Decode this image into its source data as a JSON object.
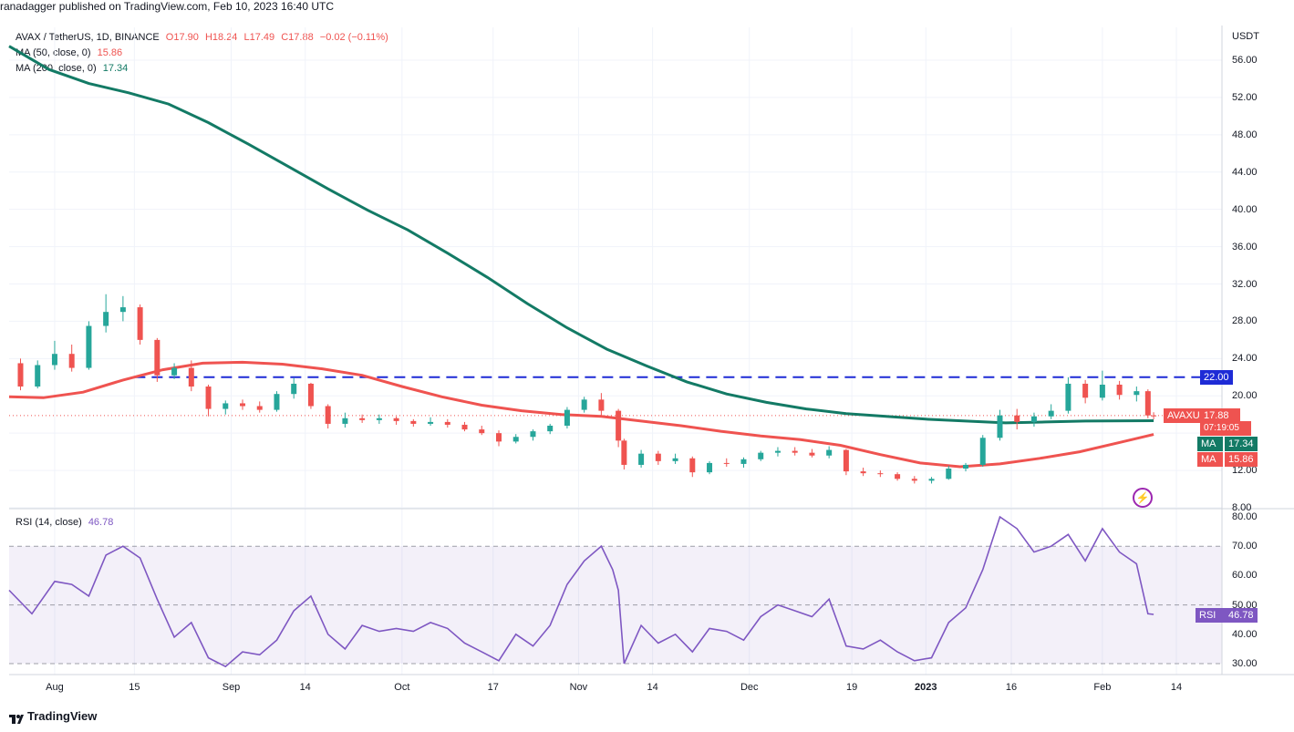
{
  "attribution": "ranadagger published on TradingView.com, Feb 10, 2023 16:40 UTC",
  "symbol_line": {
    "symbol": "AVAX / TetherUS, 1D, BINANCE",
    "open": "O17.90",
    "high": "H18.24",
    "low": "L17.49",
    "close": "C17.88",
    "change": "−0.02 (−0.11%)"
  },
  "ma50_legend": {
    "label": "MA (50, close, 0)",
    "value": "15.86"
  },
  "ma200_legend": {
    "label": "MA (200, close, 0)",
    "value": "17.34"
  },
  "rsi_legend": {
    "label": "RSI (14, close)",
    "value": "46.78"
  },
  "price_axis": {
    "currency": "USDT",
    "ticks": [
      "56.00",
      "52.00",
      "48.00",
      "44.00",
      "40.00",
      "36.00",
      "32.00",
      "28.00",
      "24.00",
      "20.00",
      "12.00",
      "8.00"
    ]
  },
  "rsi_axis": {
    "ticks": [
      "80.00",
      "70.00",
      "60.00",
      "50.00",
      "40.00",
      "30.00"
    ]
  },
  "x_axis": {
    "ticks": [
      "Aug",
      "15",
      "Sep",
      "14",
      "Oct",
      "17",
      "Nov",
      "14",
      "Dec",
      "19",
      "2023",
      "16",
      "Feb",
      "14"
    ]
  },
  "tags": {
    "resistance": "22.00",
    "ticker": "AVAXUSDT",
    "last_price": "17.88",
    "countdown": "07:19:05",
    "ma200_label": "MA",
    "ma200_value": "17.34",
    "ma50_label": "MA",
    "ma50_value": "15.86",
    "rsi_label": "RSI",
    "rsi_value": "46.78"
  },
  "colors": {
    "up": "#26a69a",
    "down": "#ef5350",
    "ma50": "#ef5350",
    "ma200": "#137a65",
    "rsi": "#7e57c2",
    "resistance": "#1e2bd6"
  },
  "brand": "TradingView",
  "chart_data": {
    "type": "candlestick",
    "timeframe": "1D",
    "resistance_level": 22.0,
    "price_ylim": [
      8,
      58
    ],
    "rsi_ylim": [
      28,
      82
    ],
    "rsi_bands": [
      30,
      50,
      70
    ],
    "candles": [
      {
        "date": "2022-07-26",
        "o": 23.5,
        "h": 24.0,
        "l": 20.6,
        "c": 21.0
      },
      {
        "date": "2022-07-29",
        "o": 21.0,
        "h": 23.8,
        "l": 20.8,
        "c": 23.3
      },
      {
        "date": "2022-08-01",
        "o": 23.3,
        "h": 25.9,
        "l": 22.8,
        "c": 24.5
      },
      {
        "date": "2022-08-04",
        "o": 24.5,
        "h": 25.5,
        "l": 22.6,
        "c": 23.0
      },
      {
        "date": "2022-08-07",
        "o": 23.0,
        "h": 28.0,
        "l": 22.8,
        "c": 27.5
      },
      {
        "date": "2022-08-10",
        "o": 27.5,
        "h": 30.9,
        "l": 26.8,
        "c": 29.0
      },
      {
        "date": "2022-08-13",
        "o": 29.0,
        "h": 30.7,
        "l": 28.0,
        "c": 29.5
      },
      {
        "date": "2022-08-16",
        "o": 29.5,
        "h": 29.8,
        "l": 25.5,
        "c": 26.0
      },
      {
        "date": "2022-08-19",
        "o": 26.0,
        "h": 26.2,
        "l": 21.5,
        "c": 22.2
      },
      {
        "date": "2022-08-22",
        "o": 22.2,
        "h": 23.5,
        "l": 21.8,
        "c": 23.0
      },
      {
        "date": "2022-08-25",
        "o": 23.0,
        "h": 23.8,
        "l": 20.5,
        "c": 21.0
      },
      {
        "date": "2022-08-28",
        "o": 21.0,
        "h": 21.2,
        "l": 17.8,
        "c": 18.6
      },
      {
        "date": "2022-08-31",
        "o": 18.6,
        "h": 19.5,
        "l": 18.0,
        "c": 19.2
      },
      {
        "date": "2022-09-03",
        "o": 19.2,
        "h": 19.6,
        "l": 18.5,
        "c": 18.9
      },
      {
        "date": "2022-09-06",
        "o": 18.9,
        "h": 19.4,
        "l": 18.2,
        "c": 18.5
      },
      {
        "date": "2022-09-09",
        "o": 18.5,
        "h": 20.5,
        "l": 18.3,
        "c": 20.2
      },
      {
        "date": "2022-09-12",
        "o": 20.2,
        "h": 21.9,
        "l": 19.7,
        "c": 21.3
      },
      {
        "date": "2022-09-15",
        "o": 21.3,
        "h": 21.4,
        "l": 18.6,
        "c": 18.9
      },
      {
        "date": "2022-09-18",
        "o": 18.9,
        "h": 19.1,
        "l": 16.5,
        "c": 17.0
      },
      {
        "date": "2022-09-21",
        "o": 17.0,
        "h": 18.2,
        "l": 16.6,
        "c": 17.6
      },
      {
        "date": "2022-09-24",
        "o": 17.6,
        "h": 18.0,
        "l": 17.1,
        "c": 17.4
      },
      {
        "date": "2022-09-27",
        "o": 17.4,
        "h": 18.0,
        "l": 17.0,
        "c": 17.6
      },
      {
        "date": "2022-09-30",
        "o": 17.6,
        "h": 17.8,
        "l": 16.9,
        "c": 17.3
      },
      {
        "date": "2022-10-03",
        "o": 17.3,
        "h": 17.5,
        "l": 16.7,
        "c": 17.0
      },
      {
        "date": "2022-10-06",
        "o": 17.0,
        "h": 17.7,
        "l": 16.8,
        "c": 17.2
      },
      {
        "date": "2022-10-09",
        "o": 17.2,
        "h": 17.5,
        "l": 16.6,
        "c": 16.9
      },
      {
        "date": "2022-10-12",
        "o": 16.9,
        "h": 17.2,
        "l": 16.2,
        "c": 16.4
      },
      {
        "date": "2022-10-15",
        "o": 16.4,
        "h": 16.8,
        "l": 15.8,
        "c": 16.0
      },
      {
        "date": "2022-10-18",
        "o": 16.0,
        "h": 16.3,
        "l": 14.6,
        "c": 15.1
      },
      {
        "date": "2022-10-21",
        "o": 15.1,
        "h": 15.9,
        "l": 14.9,
        "c": 15.6
      },
      {
        "date": "2022-10-24",
        "o": 15.6,
        "h": 16.4,
        "l": 15.2,
        "c": 16.2
      },
      {
        "date": "2022-10-27",
        "o": 16.2,
        "h": 17.0,
        "l": 15.9,
        "c": 16.8
      },
      {
        "date": "2022-10-30",
        "o": 16.8,
        "h": 18.8,
        "l": 16.5,
        "c": 18.5
      },
      {
        "date": "2022-11-02",
        "o": 18.5,
        "h": 19.9,
        "l": 18.2,
        "c": 19.6
      },
      {
        "date": "2022-11-05",
        "o": 19.6,
        "h": 20.3,
        "l": 17.9,
        "c": 18.4
      },
      {
        "date": "2022-11-08",
        "o": 18.4,
        "h": 18.6,
        "l": 14.5,
        "c": 15.2
      },
      {
        "date": "2022-11-09",
        "o": 15.2,
        "h": 15.4,
        "l": 12.1,
        "c": 12.6
      },
      {
        "date": "2022-11-12",
        "o": 12.6,
        "h": 14.2,
        "l": 12.3,
        "c": 13.8
      },
      {
        "date": "2022-11-15",
        "o": 13.8,
        "h": 14.1,
        "l": 12.6,
        "c": 13.0
      },
      {
        "date": "2022-11-18",
        "o": 13.0,
        "h": 13.8,
        "l": 12.7,
        "c": 13.3
      },
      {
        "date": "2022-11-21",
        "o": 13.3,
        "h": 13.5,
        "l": 11.3,
        "c": 11.8
      },
      {
        "date": "2022-11-24",
        "o": 11.8,
        "h": 13.0,
        "l": 11.6,
        "c": 12.8
      },
      {
        "date": "2022-11-27",
        "o": 12.8,
        "h": 13.3,
        "l": 12.4,
        "c": 12.7
      },
      {
        "date": "2022-11-30",
        "o": 12.7,
        "h": 13.4,
        "l": 12.3,
        "c": 13.2
      },
      {
        "date": "2022-12-03",
        "o": 13.2,
        "h": 14.1,
        "l": 13.0,
        "c": 13.9
      },
      {
        "date": "2022-12-06",
        "o": 13.9,
        "h": 14.5,
        "l": 13.5,
        "c": 14.1
      },
      {
        "date": "2022-12-09",
        "o": 14.1,
        "h": 14.5,
        "l": 13.6,
        "c": 13.9
      },
      {
        "date": "2022-12-12",
        "o": 13.9,
        "h": 14.3,
        "l": 13.4,
        "c": 13.6
      },
      {
        "date": "2022-12-15",
        "o": 13.6,
        "h": 14.6,
        "l": 13.3,
        "c": 14.2
      },
      {
        "date": "2022-12-18",
        "o": 14.2,
        "h": 14.3,
        "l": 11.5,
        "c": 11.9
      },
      {
        "date": "2022-12-21",
        "o": 11.9,
        "h": 12.3,
        "l": 11.4,
        "c": 11.7
      },
      {
        "date": "2022-12-24",
        "o": 11.7,
        "h": 12.0,
        "l": 11.3,
        "c": 11.6
      },
      {
        "date": "2022-12-27",
        "o": 11.6,
        "h": 11.8,
        "l": 10.9,
        "c": 11.1
      },
      {
        "date": "2022-12-30",
        "o": 11.1,
        "h": 11.4,
        "l": 10.6,
        "c": 10.9
      },
      {
        "date": "2023-01-02",
        "o": 10.9,
        "h": 11.3,
        "l": 10.6,
        "c": 11.1
      },
      {
        "date": "2023-01-05",
        "o": 11.1,
        "h": 12.5,
        "l": 11.0,
        "c": 12.2
      },
      {
        "date": "2023-01-08",
        "o": 12.2,
        "h": 12.8,
        "l": 11.9,
        "c": 12.6
      },
      {
        "date": "2023-01-11",
        "o": 12.6,
        "h": 15.8,
        "l": 12.4,
        "c": 15.5
      },
      {
        "date": "2023-01-14",
        "o": 15.5,
        "h": 18.5,
        "l": 15.2,
        "c": 17.9
      },
      {
        "date": "2023-01-17",
        "o": 17.9,
        "h": 18.6,
        "l": 16.4,
        "c": 17.2
      },
      {
        "date": "2023-01-20",
        "o": 17.2,
        "h": 18.2,
        "l": 16.7,
        "c": 17.8
      },
      {
        "date": "2023-01-23",
        "o": 17.8,
        "h": 19.1,
        "l": 17.5,
        "c": 18.4
      },
      {
        "date": "2023-01-26",
        "o": 18.4,
        "h": 22.0,
        "l": 18.1,
        "c": 21.3
      },
      {
        "date": "2023-01-29",
        "o": 21.3,
        "h": 21.7,
        "l": 19.2,
        "c": 19.8
      },
      {
        "date": "2023-02-01",
        "o": 19.8,
        "h": 22.7,
        "l": 19.5,
        "c": 21.2
      },
      {
        "date": "2023-02-04",
        "o": 21.2,
        "h": 21.6,
        "l": 19.6,
        "c": 20.1
      },
      {
        "date": "2023-02-07",
        "o": 20.1,
        "h": 21.0,
        "l": 19.4,
        "c": 20.5
      },
      {
        "date": "2023-02-09",
        "o": 20.5,
        "h": 20.7,
        "l": 17.6,
        "c": 17.9
      },
      {
        "date": "2023-02-10",
        "o": 17.9,
        "h": 18.24,
        "l": 17.49,
        "c": 17.88
      }
    ],
    "ma50": [
      [
        "2022-07-24",
        19.9
      ],
      [
        "2022-07-30",
        19.8
      ],
      [
        "2022-08-06",
        20.4
      ],
      [
        "2022-08-13",
        21.7
      ],
      [
        "2022-08-20",
        22.8
      ],
      [
        "2022-08-27",
        23.5
      ],
      [
        "2022-09-03",
        23.6
      ],
      [
        "2022-09-10",
        23.4
      ],
      [
        "2022-09-17",
        22.9
      ],
      [
        "2022-09-24",
        22.2
      ],
      [
        "2022-10-01",
        21.0
      ],
      [
        "2022-10-08",
        19.9
      ],
      [
        "2022-10-15",
        19.0
      ],
      [
        "2022-10-22",
        18.4
      ],
      [
        "2022-10-29",
        18.0
      ],
      [
        "2022-11-05",
        17.8
      ],
      [
        "2022-11-12",
        17.3
      ],
      [
        "2022-11-19",
        16.8
      ],
      [
        "2022-11-26",
        16.2
      ],
      [
        "2022-12-03",
        15.7
      ],
      [
        "2022-12-10",
        15.3
      ],
      [
        "2022-12-17",
        14.7
      ],
      [
        "2022-12-24",
        13.7
      ],
      [
        "2022-12-31",
        12.8
      ],
      [
        "2023-01-07",
        12.4
      ],
      [
        "2023-01-14",
        12.7
      ],
      [
        "2023-01-21",
        13.3
      ],
      [
        "2023-01-28",
        14.0
      ],
      [
        "2023-02-04",
        15.0
      ],
      [
        "2023-02-10",
        15.86
      ]
    ],
    "ma200": [
      [
        "2022-07-24",
        57.5
      ],
      [
        "2022-07-31",
        55.0
      ],
      [
        "2022-08-07",
        53.5
      ],
      [
        "2022-08-14",
        52.5
      ],
      [
        "2022-08-21",
        51.3
      ],
      [
        "2022-08-28",
        49.3
      ],
      [
        "2022-09-04",
        47.0
      ],
      [
        "2022-09-11",
        44.6
      ],
      [
        "2022-09-18",
        42.2
      ],
      [
        "2022-09-25",
        39.9
      ],
      [
        "2022-10-02",
        37.8
      ],
      [
        "2022-10-09",
        35.3
      ],
      [
        "2022-10-16",
        32.7
      ],
      [
        "2022-10-23",
        29.9
      ],
      [
        "2022-10-30",
        27.3
      ],
      [
        "2022-11-06",
        25.0
      ],
      [
        "2022-11-13",
        23.2
      ],
      [
        "2022-11-20",
        21.5
      ],
      [
        "2022-11-27",
        20.2
      ],
      [
        "2022-12-04",
        19.3
      ],
      [
        "2022-12-11",
        18.6
      ],
      [
        "2022-12-18",
        18.1
      ],
      [
        "2022-12-25",
        17.8
      ],
      [
        "2023-01-01",
        17.5
      ],
      [
        "2023-01-08",
        17.3
      ],
      [
        "2023-01-15",
        17.1
      ],
      [
        "2023-01-22",
        17.2
      ],
      [
        "2023-01-29",
        17.3
      ],
      [
        "2023-02-10",
        17.34
      ]
    ],
    "rsi": [
      [
        "2022-07-24",
        55
      ],
      [
        "2022-07-28",
        47
      ],
      [
        "2022-08-01",
        58
      ],
      [
        "2022-08-04",
        57
      ],
      [
        "2022-08-07",
        53
      ],
      [
        "2022-08-10",
        67
      ],
      [
        "2022-08-13",
        70
      ],
      [
        "2022-08-16",
        66
      ],
      [
        "2022-08-19",
        52
      ],
      [
        "2022-08-22",
        39
      ],
      [
        "2022-08-25",
        44
      ],
      [
        "2022-08-28",
        32
      ],
      [
        "2022-08-31",
        29
      ],
      [
        "2022-09-03",
        34
      ],
      [
        "2022-09-06",
        33
      ],
      [
        "2022-09-09",
        38
      ],
      [
        "2022-09-12",
        48
      ],
      [
        "2022-09-15",
        53
      ],
      [
        "2022-09-18",
        40
      ],
      [
        "2022-09-21",
        35
      ],
      [
        "2022-09-24",
        43
      ],
      [
        "2022-09-27",
        41
      ],
      [
        "2022-09-30",
        42
      ],
      [
        "2022-10-03",
        41
      ],
      [
        "2022-10-06",
        44
      ],
      [
        "2022-10-09",
        42
      ],
      [
        "2022-10-12",
        37
      ],
      [
        "2022-10-15",
        34
      ],
      [
        "2022-10-18",
        31
      ],
      [
        "2022-10-21",
        40
      ],
      [
        "2022-10-24",
        36
      ],
      [
        "2022-10-27",
        43
      ],
      [
        "2022-10-30",
        57
      ],
      [
        "2022-11-02",
        65
      ],
      [
        "2022-11-05",
        70
      ],
      [
        "2022-11-07",
        62
      ],
      [
        "2022-11-08",
        55
      ],
      [
        "2022-11-09",
        30
      ],
      [
        "2022-11-12",
        43
      ],
      [
        "2022-11-15",
        37
      ],
      [
        "2022-11-18",
        40
      ],
      [
        "2022-11-21",
        34
      ],
      [
        "2022-11-24",
        42
      ],
      [
        "2022-11-27",
        41
      ],
      [
        "2022-11-30",
        38
      ],
      [
        "2022-12-03",
        46
      ],
      [
        "2022-12-06",
        50
      ],
      [
        "2022-12-09",
        48
      ],
      [
        "2022-12-12",
        46
      ],
      [
        "2022-12-15",
        52
      ],
      [
        "2022-12-18",
        36
      ],
      [
        "2022-12-21",
        35
      ],
      [
        "2022-12-24",
        38
      ],
      [
        "2022-12-27",
        34
      ],
      [
        "2022-12-30",
        31
      ],
      [
        "2023-01-02",
        32
      ],
      [
        "2023-01-05",
        44
      ],
      [
        "2023-01-08",
        49
      ],
      [
        "2023-01-11",
        62
      ],
      [
        "2023-01-14",
        80
      ],
      [
        "2023-01-17",
        76
      ],
      [
        "2023-01-20",
        68
      ],
      [
        "2023-01-23",
        70
      ],
      [
        "2023-01-26",
        74
      ],
      [
        "2023-01-29",
        65
      ],
      [
        "2023-02-01",
        76
      ],
      [
        "2023-02-04",
        68
      ],
      [
        "2023-02-07",
        64
      ],
      [
        "2023-02-09",
        47
      ],
      [
        "2023-02-10",
        46.78
      ]
    ]
  }
}
